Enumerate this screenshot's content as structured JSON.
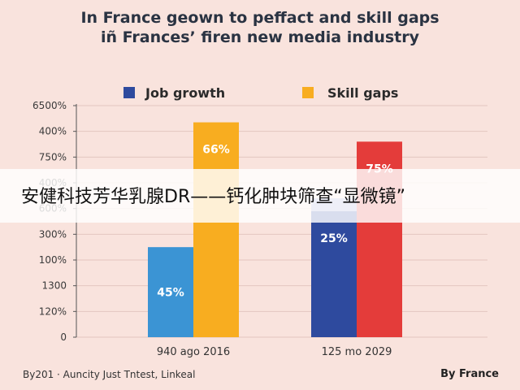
{
  "chart_data": {
    "type": "bar",
    "title_lines": [
      "In France geown to peffact and skill gaps",
      "iñ Frances’ firen new media industry"
    ],
    "categories": [
      "940 ago 2016",
      "125 mo 2029"
    ],
    "y_tick_labels": [
      "0",
      "120%",
      "1300",
      "100%",
      "300%",
      "600%",
      "400%",
      "750%",
      "400%",
      "6500%"
    ],
    "ylim": [
      0,
      9
    ],
    "grid": true,
    "legend_position": "top",
    "series": [
      {
        "name": "Job growth",
        "colors": [
          "#3b94d4",
          "#2e4a9e"
        ],
        "values": [
          3.5,
          4.9
        ],
        "labels": [
          "45%",
          "25%"
        ]
      },
      {
        "name": "Skill gaps",
        "colors": [
          "#f8ad20",
          "#e43c3a"
        ],
        "values": [
          8.35,
          7.6
        ],
        "labels": [
          "66%",
          "75%"
        ]
      }
    ],
    "extra_segment": {
      "series_index": 0,
      "category_index": 1,
      "from": 4.9,
      "to": 5.4,
      "color": "#9ea7d6"
    }
  },
  "banner": {
    "text": "安健科技芳华乳腺DR——钙化肿块筛查“显微镜”"
  },
  "footer": {
    "left": "By201 · Auncity Just Tntest, Linkeal",
    "right": "By France"
  }
}
